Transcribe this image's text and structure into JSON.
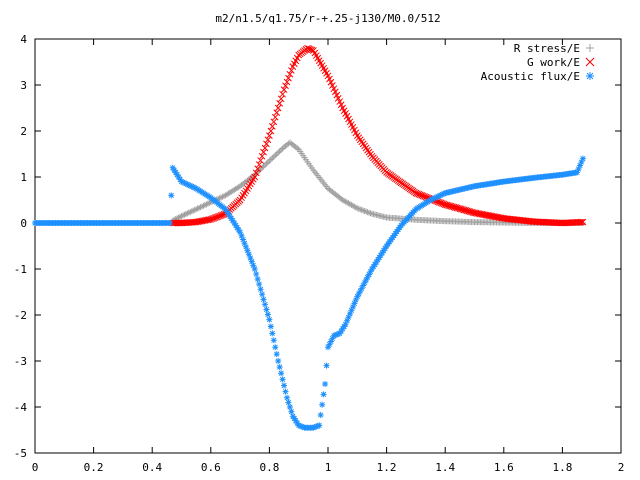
{
  "chart_data": {
    "type": "scatter",
    "title": "m2/n1.5/q1.75/r-+.25-j130/M0.0/512",
    "xlabel": "",
    "ylabel": "",
    "xlim": [
      0,
      2
    ],
    "ylim": [
      -5,
      4
    ],
    "x_ticks": [
      0,
      0.2,
      0.4,
      0.6,
      0.8,
      1,
      1.2,
      1.4,
      1.6,
      1.8,
      2
    ],
    "x_tick_labels": [
      "0",
      "0.2",
      "0.4",
      "0.6",
      "0.8",
      "1",
      "1.2",
      "1.4",
      "1.6",
      "1.8",
      "2"
    ],
    "y_ticks": [
      -5,
      -4,
      -3,
      -2,
      -1,
      0,
      1,
      2,
      3,
      4
    ],
    "y_tick_labels": [
      "-5",
      "-4",
      "-3",
      "-2",
      "-1",
      "0",
      "1",
      "2",
      "3",
      "4"
    ],
    "grid": false,
    "legend_position": "top-right",
    "series": [
      {
        "name": "R stress/E",
        "marker": "plus",
        "color": "#a0a0a0",
        "x": [
          0.47,
          0.5,
          0.55,
          0.6,
          0.65,
          0.7,
          0.75,
          0.8,
          0.85,
          0.87,
          0.9,
          0.95,
          1.0,
          1.05,
          1.1,
          1.15,
          1.2,
          1.3,
          1.4,
          1.5,
          1.6,
          1.7,
          1.8,
          1.87
        ],
        "y": [
          0.05,
          0.15,
          0.3,
          0.45,
          0.6,
          0.8,
          1.05,
          1.35,
          1.65,
          1.75,
          1.6,
          1.15,
          0.75,
          0.5,
          0.32,
          0.2,
          0.12,
          0.07,
          0.04,
          0.02,
          0.01,
          0.0,
          0.0,
          0.0
        ]
      },
      {
        "name": "G work/E",
        "marker": "cross",
        "color": "#ff0000",
        "x": [
          0.47,
          0.5,
          0.55,
          0.6,
          0.65,
          0.7,
          0.75,
          0.8,
          0.85,
          0.88,
          0.9,
          0.93,
          0.95,
          1.0,
          1.05,
          1.1,
          1.15,
          1.2,
          1.3,
          1.4,
          1.5,
          1.6,
          1.7,
          1.8,
          1.87
        ],
        "y": [
          0.0,
          0.0,
          0.02,
          0.08,
          0.2,
          0.5,
          1.0,
          1.9,
          2.9,
          3.4,
          3.65,
          3.8,
          3.75,
          3.2,
          2.5,
          1.9,
          1.45,
          1.1,
          0.65,
          0.4,
          0.22,
          0.1,
          0.03,
          0.0,
          0.02
        ]
      },
      {
        "name": "Acoustic flux/E",
        "marker": "star",
        "color": "#1e90ff",
        "x": [
          0,
          0.05,
          0.1,
          0.15,
          0.2,
          0.25,
          0.3,
          0.35,
          0.4,
          0.46,
          0.47,
          0.5,
          0.55,
          0.6,
          0.65,
          0.7,
          0.75,
          0.8,
          0.83,
          0.86,
          0.88,
          0.9,
          0.92,
          0.95,
          0.97,
          0.99,
          1.0,
          1.02,
          1.04,
          1.06,
          1.1,
          1.15,
          1.2,
          1.25,
          1.3,
          1.35,
          1.4,
          1.5,
          1.6,
          1.7,
          1.8,
          1.85,
          1.87
        ],
        "y": [
          0,
          0,
          0,
          0,
          0,
          0,
          0,
          0,
          0,
          0,
          1.2,
          0.9,
          0.75,
          0.55,
          0.3,
          -0.2,
          -1.0,
          -2.1,
          -3.0,
          -3.8,
          -4.2,
          -4.4,
          -4.45,
          -4.45,
          -4.4,
          -3.5,
          -2.7,
          -2.45,
          -2.4,
          -2.2,
          -1.6,
          -1.0,
          -0.5,
          -0.05,
          0.3,
          0.5,
          0.65,
          0.8,
          0.9,
          0.98,
          1.05,
          1.1,
          1.4
        ]
      }
    ]
  }
}
